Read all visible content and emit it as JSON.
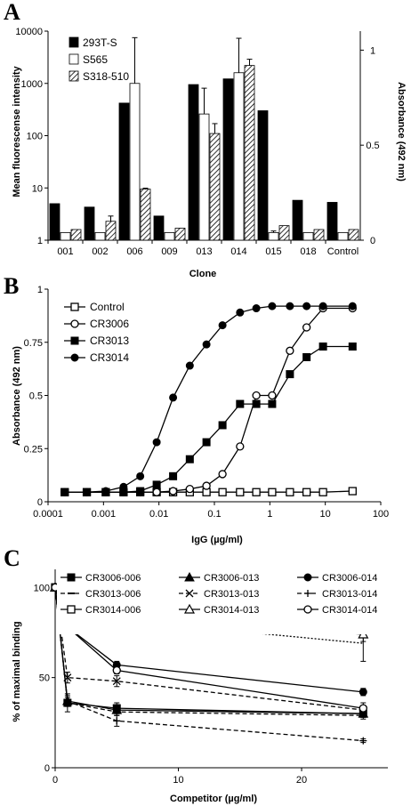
{
  "chart_data": [
    {
      "panel": "A",
      "type": "bar",
      "xlabel": "Clone",
      "ylabel": "Mean fluorescense intensity",
      "ylabel_right": "Absorbance (492 nm)",
      "y_scale": "log",
      "ylim": [
        1,
        10000
      ],
      "y_ticks": [
        "1",
        "10",
        "100",
        "1000",
        "10000"
      ],
      "ylim_right": [
        0,
        1.1
      ],
      "y_right_ticks": [
        "0",
        "0.5",
        "1"
      ],
      "categories": [
        "001",
        "002",
        "006",
        "009",
        "013",
        "014",
        "015",
        "018",
        "Control"
      ],
      "legend_position": "top-left",
      "series": [
        {
          "name": "293T-S",
          "fill": "#000000",
          "values": [
            5.0,
            4.3,
            420,
            2.9,
            950,
            1220,
            300,
            5.8,
            5.3
          ],
          "errors": [
            0,
            0,
            0,
            0,
            0,
            0,
            0,
            0,
            0
          ]
        },
        {
          "name": "S565",
          "fill": "#ffffff",
          "values": [
            1.4,
            1.4,
            1000,
            1.4,
            260,
            1600,
            1.4,
            1.4,
            1.4
          ],
          "errors": [
            0,
            0,
            6500,
            0,
            550,
            5700,
            0.1,
            0,
            0
          ]
        },
        {
          "name": "S318-510",
          "fill": "hatch",
          "values": [
            1.6,
            2.3,
            9.5,
            1.7,
            110,
            2200,
            1.9,
            1.6,
            1.6
          ],
          "errors": [
            0,
            0.6,
            0.4,
            0,
            60,
            700,
            0,
            0,
            0
          ]
        }
      ]
    },
    {
      "panel": "B",
      "type": "line",
      "xlabel": "IgG (µg/ml)",
      "ylabel": "Absorbance (492 nm)",
      "x_scale": "log",
      "xlim": [
        0.0001,
        100
      ],
      "x_ticks": [
        "0.0001",
        "0.001",
        "0.01",
        "0.1",
        "1",
        "10",
        "100"
      ],
      "ylim": [
        0,
        1
      ],
      "y_ticks": [
        "0",
        "0.25",
        "0.5",
        "0.75",
        "1"
      ],
      "legend_position": "top-left",
      "x": [
        0.0002,
        0.0005,
        0.0011,
        0.0023,
        0.0046,
        0.0091,
        0.018,
        0.036,
        0.072,
        0.14,
        0.29,
        0.57,
        1.1,
        2.3,
        4.6,
        9.1,
        31
      ],
      "series": [
        {
          "name": "Control",
          "marker": "open-square",
          "values": [
            0.045,
            0.045,
            0.045,
            0.045,
            0.045,
            0.045,
            0.045,
            0.045,
            0.045,
            0.045,
            0.045,
            0.045,
            0.045,
            0.045,
            0.045,
            0.045,
            0.05
          ]
        },
        {
          "name": "CR3006",
          "marker": "open-circle",
          "values": [
            0.045,
            0.045,
            0.045,
            0.045,
            0.045,
            0.045,
            0.05,
            0.06,
            0.075,
            0.13,
            0.26,
            0.5,
            0.5,
            0.71,
            0.82,
            0.91,
            0.91
          ]
        },
        {
          "name": "CR3013",
          "marker": "filled-square",
          "values": [
            0.045,
            0.045,
            0.045,
            0.045,
            0.05,
            0.08,
            0.12,
            0.2,
            0.28,
            0.36,
            0.46,
            0.46,
            0.46,
            0.6,
            0.68,
            0.73,
            0.73
          ]
        },
        {
          "name": "CR3014",
          "marker": "filled-circle",
          "values": [
            0.045,
            0.045,
            0.05,
            0.07,
            0.12,
            0.28,
            0.49,
            0.64,
            0.74,
            0.83,
            0.89,
            0.91,
            0.92,
            0.92,
            0.92,
            0.92,
            0.92
          ]
        }
      ]
    },
    {
      "panel": "C",
      "type": "line",
      "xlabel": "Competitor (µg/ml)",
      "ylabel": "% of maximal binding",
      "xlim": [
        0,
        27
      ],
      "x_ticks": [
        "0",
        "10",
        "20"
      ],
      "ylim": [
        0,
        110
      ],
      "y_ticks": [
        "0",
        "50",
        "100"
      ],
      "legend_position": "top",
      "x": [
        0,
        1,
        5,
        25
      ],
      "series": [
        {
          "name": "CR3006-006",
          "marker": "filled-square",
          "dash": "solid",
          "values": [
            100,
            36,
            33,
            30
          ],
          "errors": [
            0,
            5,
            3,
            2
          ]
        },
        {
          "name": "CR3006-013",
          "marker": "filled-triangle",
          "dash": "solid",
          "values": [
            100,
            37,
            32,
            30
          ],
          "errors": [
            0,
            3,
            3,
            2
          ]
        },
        {
          "name": "CR3006-014",
          "marker": "filled-circle",
          "dash": "solid",
          "values": [
            100,
            78,
            57,
            42
          ],
          "errors": [
            0,
            2,
            2,
            2
          ]
        },
        {
          "name": "CR3013-006",
          "marker": "dash",
          "dash": "dashed",
          "values": [
            100,
            36,
            31,
            29
          ],
          "errors": [
            0,
            2,
            2,
            2
          ]
        },
        {
          "name": "CR3013-013",
          "marker": "x",
          "dash": "dashed",
          "values": [
            100,
            50,
            48,
            32
          ],
          "errors": [
            0,
            3,
            3,
            2
          ]
        },
        {
          "name": "CR3013-014",
          "marker": "plus",
          "dash": "dashed",
          "values": [
            100,
            37,
            26,
            15
          ],
          "errors": [
            0,
            2,
            3,
            1
          ]
        },
        {
          "name": "CR3014-006",
          "marker": "open-square",
          "dash": "solid",
          "values": [
            100,
            105,
            101,
            94
          ],
          "errors": [
            0,
            2,
            2,
            2
          ]
        },
        {
          "name": "CR3014-013",
          "marker": "open-triangle",
          "dash": "solid",
          "values": [
            100,
            91,
            84,
            74
          ],
          "errors": [
            0,
            3,
            3,
            4
          ]
        },
        {
          "name": "CR3014-014",
          "marker": "open-circle",
          "dash": "solid",
          "values": [
            100,
            78,
            54,
            33
          ],
          "errors": [
            0,
            3,
            2,
            3
          ]
        },
        {
          "name": "",
          "marker": "none",
          "dash": "dotted",
          "values": [
            100,
            88,
            82,
            69
          ],
          "errors": [
            0,
            3,
            3,
            10
          ]
        }
      ]
    }
  ]
}
